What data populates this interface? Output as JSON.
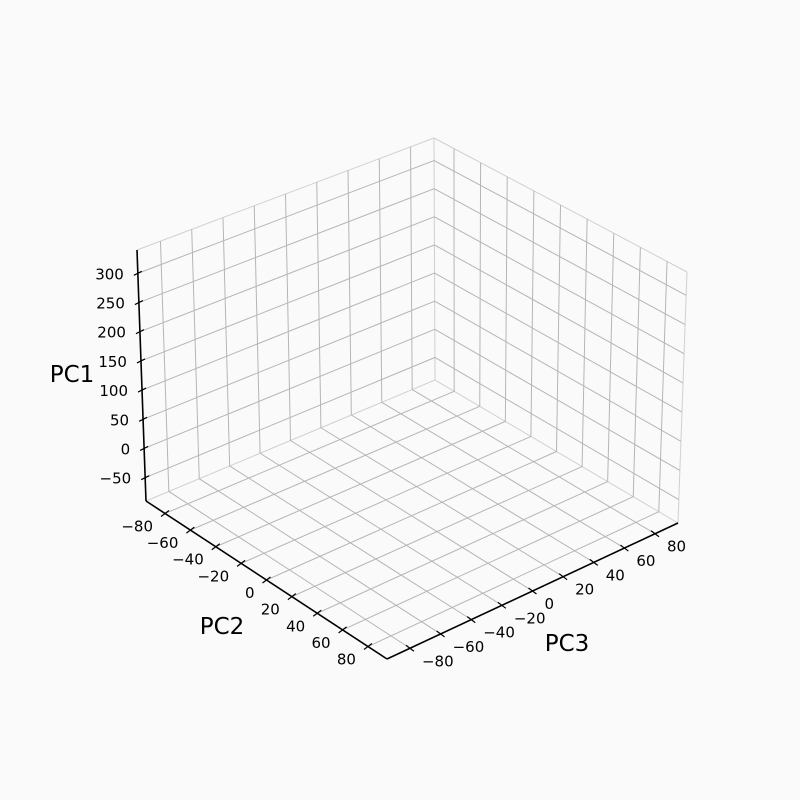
{
  "chart_data": {
    "type": "scatter",
    "projection": "3d",
    "title": "",
    "series": [],
    "zlabel": "PC1",
    "xlabel": "PC3",
    "ylabel": "PC2",
    "z_ticks": [
      -50,
      0,
      50,
      100,
      150,
      200,
      250,
      300
    ],
    "x_ticks": [
      -80,
      -60,
      -40,
      -20,
      0,
      20,
      40,
      60,
      80
    ],
    "y_ticks": [
      -80,
      -60,
      -40,
      -20,
      0,
      20,
      40,
      60,
      80
    ],
    "z_tick_labels": [
      "−50",
      "0",
      "50",
      "100",
      "150",
      "200",
      "250",
      "300"
    ],
    "x_tick_labels": [
      "−80",
      "−60",
      "−40",
      "−20",
      "0",
      "20",
      "40",
      "60",
      "80"
    ],
    "y_tick_labels": [
      "−80",
      "−60",
      "−40",
      "−20",
      "0",
      "20",
      "40",
      "60",
      "80"
    ],
    "grid": true,
    "legend": "none"
  }
}
